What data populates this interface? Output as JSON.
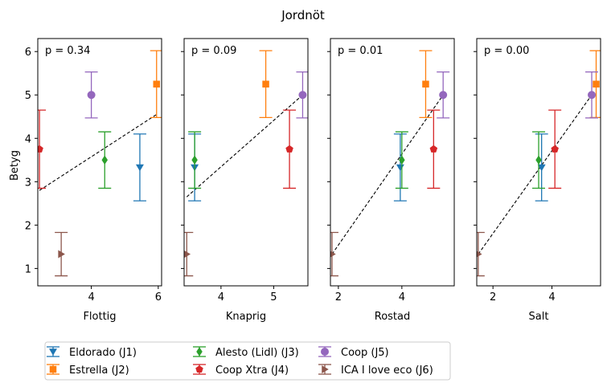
{
  "chart_data": {
    "type": "scatter",
    "title": "Jordnöt",
    "ylabel": "Betyg",
    "ylim": [
      0.6,
      6.3
    ],
    "yticks": [
      1,
      2,
      3,
      4,
      5,
      6
    ],
    "legend_position": "bottom",
    "series": [
      {
        "name": "Eldorado (J1)",
        "color": "#1f77b4",
        "marker": "triangle-down",
        "y": 3.33,
        "err": 0.77,
        "x": [
          5.45,
          3.5,
          3.95,
          3.65
        ]
      },
      {
        "name": "Estrella (J2)",
        "color": "#ff7f0e",
        "marker": "square",
        "y": 5.25,
        "err": 0.77,
        "x": [
          5.95,
          4.85,
          4.75,
          5.5
        ]
      },
      {
        "name": "Alesto (Lidl) (J3)",
        "color": "#2ca02c",
        "marker": "diamond",
        "y": 3.5,
        "err": 0.65,
        "x": [
          4.4,
          3.5,
          4.0,
          3.55
        ]
      },
      {
        "name": "Coop Xtra (J4)",
        "color": "#d62728",
        "marker": "pentagon",
        "y": 3.75,
        "err": 0.9,
        "x": [
          2.45,
          5.3,
          5.0,
          4.1
        ]
      },
      {
        "name": "Coop (J5)",
        "color": "#9467bd",
        "marker": "circle",
        "y": 5.0,
        "err": 0.53,
        "x": [
          4.0,
          5.55,
          5.3,
          5.35
        ]
      },
      {
        "name": "ICA I love eco (J6)",
        "color": "#8c564b",
        "marker": "triangle-right",
        "y": 1.33,
        "err": 0.5,
        "x": [
          3.1,
          3.35,
          1.8,
          1.5
        ]
      }
    ],
    "panels": [
      {
        "xlabel": "Flottig",
        "pvalue": "p = 0.34",
        "xlim": [
          2.4,
          6.1
        ],
        "xticks": [
          4,
          6
        ],
        "fit": [
          [
            2.45,
            2.8
          ],
          [
            5.95,
            4.55
          ]
        ]
      },
      {
        "xlabel": "Knaprig",
        "pvalue": "p = 0.09",
        "xlim": [
          3.3,
          5.65
        ],
        "xticks": [
          4,
          5
        ],
        "fit": [
          [
            3.35,
            2.65
          ],
          [
            5.55,
            5.0
          ]
        ]
      },
      {
        "xlabel": "Rostad",
        "pvalue": "p = 0.01",
        "xlim": [
          1.75,
          5.65
        ],
        "xticks": [
          2,
          4
        ],
        "fit": [
          [
            1.8,
            1.33
          ],
          [
            5.3,
            5.0
          ]
        ]
      },
      {
        "xlabel": "Salt",
        "pvalue": "p = 0.00",
        "xlim": [
          1.45,
          5.65
        ],
        "xticks": [
          2,
          4
        ],
        "fit": [
          [
            1.5,
            1.33
          ],
          [
            5.35,
            5.0
          ]
        ]
      }
    ]
  }
}
